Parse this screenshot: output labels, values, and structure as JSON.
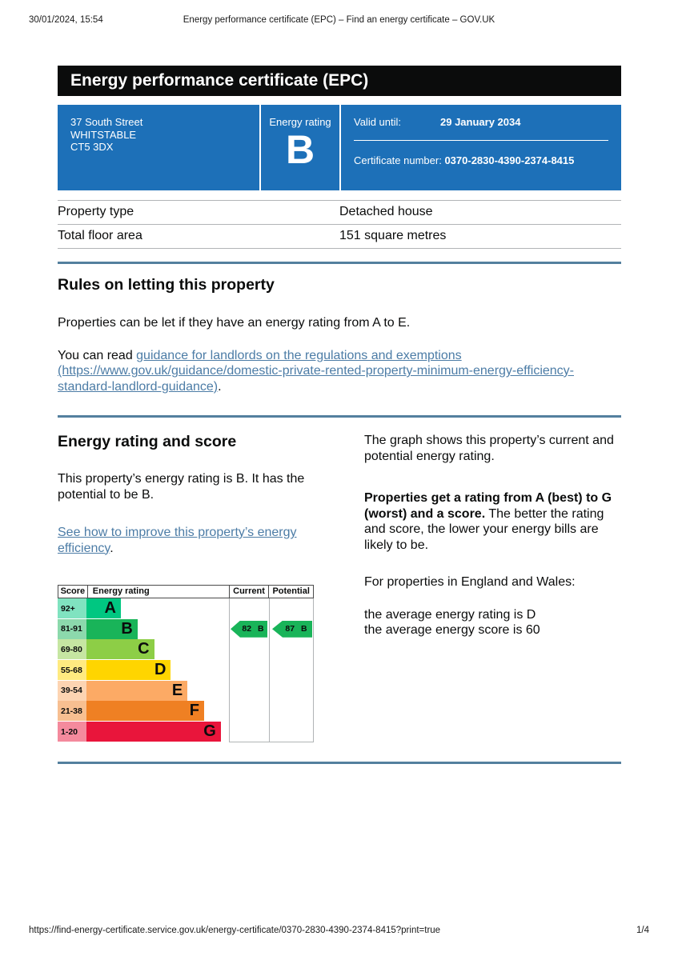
{
  "print_header": {
    "datetime": "30/01/2024, 15:54",
    "title": "Energy performance certificate (EPC) – Find an energy certificate – GOV.UK"
  },
  "banner": {
    "title": "Energy performance certificate (EPC)"
  },
  "summary_panel": {
    "background": "#1d70b8",
    "address_lines": [
      "37 South Street",
      "WHITSTABLE",
      "CT5 3DX"
    ],
    "energy_rating_label": "Energy rating",
    "energy_rating": "B",
    "valid_until_label": "Valid until:",
    "valid_until": "29 January 2034",
    "certificate_number_label": "Certificate number:",
    "certificate_number": "0370-2830-4390-2374-8415"
  },
  "property_table": {
    "rows": [
      {
        "label": "Property type",
        "value": "Detached house"
      },
      {
        "label": "Total floor area",
        "value": "151 square metres"
      }
    ]
  },
  "rules_section": {
    "heading": "Rules on letting this property",
    "paragraph": "Properties can be let if they have an energy rating from A to E.",
    "link_prefix": "You can read ",
    "link_text": "guidance for landlords on the regulations and exemptions (https://www.gov.uk/guidance/domestic-private-rented-property-minimum-energy-efficiency-standard-landlord-guidance)",
    "link_suffix": "."
  },
  "rating_section": {
    "heading": "Energy rating and score",
    "paragraph": "This property’s energy rating is B. It has the potential to be B.",
    "link_text": "See how to improve this property’s energy efficiency",
    "link_suffix": ".",
    "right": {
      "p1": "The graph shows this property’s current and potential energy rating.",
      "p2_bold": "Properties get a rating from A (best) to G (worst) and a score.",
      "p2_rest": " The better the rating and score, the lower your energy bills are likely to be.",
      "p3": "For properties in England and Wales:",
      "p4_line1": "the average energy rating is D",
      "p4_line2": "the average energy score is 60"
    }
  },
  "chart_data": {
    "type": "bar",
    "title": "EPC energy rating bands",
    "headers": [
      "Score",
      "Energy rating",
      "Current",
      "Potential"
    ],
    "bands": [
      {
        "score": "92+",
        "letter": "A",
        "color": "#00c781",
        "tint": "#80e3c0"
      },
      {
        "score": "81-91",
        "letter": "B",
        "color": "#19b459",
        "tint": "#8cd9ac"
      },
      {
        "score": "69-80",
        "letter": "C",
        "color": "#8dce46",
        "tint": "#c6e6a2"
      },
      {
        "score": "55-68",
        "letter": "D",
        "color": "#ffd500",
        "tint": "#ffea80"
      },
      {
        "score": "39-54",
        "letter": "E",
        "color": "#fcaa65",
        "tint": "#fdd4b2"
      },
      {
        "score": "21-38",
        "letter": "F",
        "color": "#ef8023",
        "tint": "#f7bf91"
      },
      {
        "score": "1-20",
        "letter": "G",
        "color": "#e9153b",
        "tint": "#f48a9d"
      }
    ],
    "current": {
      "score": 82,
      "letter": "B",
      "color": "#19b459"
    },
    "potential": {
      "score": 87,
      "letter": "B",
      "color": "#19b459"
    }
  },
  "page_footer": {
    "url": "https://find-energy-certificate.service.gov.uk/energy-certificate/0370-2830-4390-2374-8415?print=true",
    "page": "1/4"
  }
}
